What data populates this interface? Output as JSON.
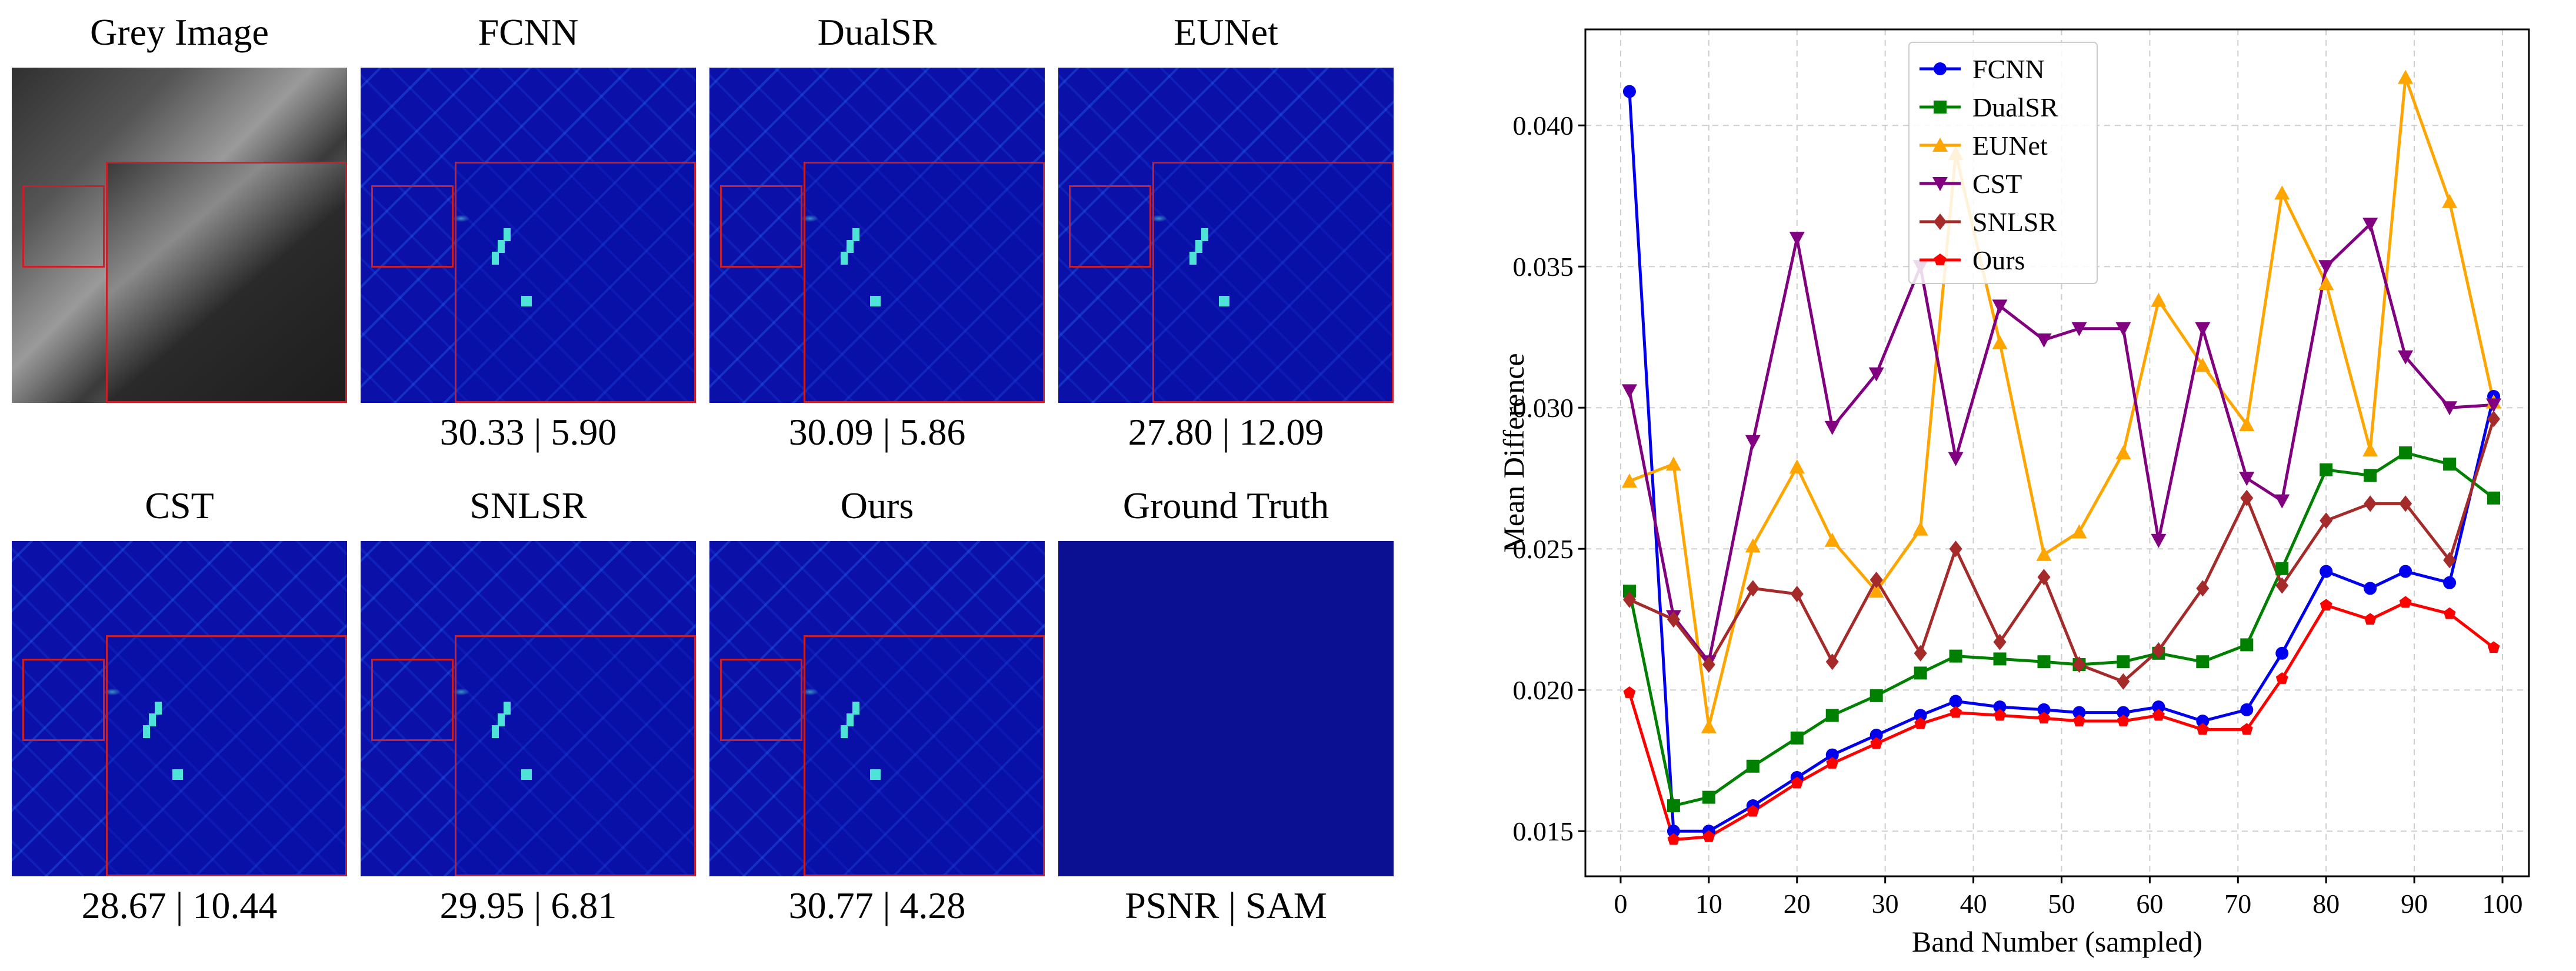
{
  "panels": [
    {
      "title": "Grey Image",
      "score": "",
      "kind": "grey"
    },
    {
      "title": "FCNN",
      "score": "30.33 | 5.90",
      "kind": "heat"
    },
    {
      "title": "DualSR",
      "score": "30.09 | 5.86",
      "kind": "heat"
    },
    {
      "title": "EUNet",
      "score": "27.80 | 12.09",
      "kind": "heat"
    },
    {
      "title": "CST",
      "score": "28.67 | 10.44",
      "kind": "heat"
    },
    {
      "title": "SNLSR",
      "score": "29.95 | 6.81",
      "kind": "heat"
    },
    {
      "title": "Ours",
      "score": "30.77 | 4.28",
      "kind": "heat"
    },
    {
      "title": "Ground Truth",
      "score": "PSNR | SAM",
      "kind": "gt"
    }
  ],
  "chart_data": {
    "type": "line",
    "xlabel": "Band Number (sampled)",
    "ylabel": "Mean Difference",
    "xlim": [
      -4,
      103
    ],
    "ylim": [
      0.0134,
      0.0434
    ],
    "xticks": [
      0,
      10,
      20,
      30,
      40,
      50,
      60,
      70,
      80,
      90,
      100
    ],
    "yticks": [
      0.015,
      0.02,
      0.025,
      0.03,
      0.035,
      0.04
    ],
    "ytick_labels": [
      "0.015",
      "0.020",
      "0.025",
      "0.030",
      "0.035",
      "0.040"
    ],
    "grid": true,
    "legend_position": "top-center",
    "x": [
      1,
      6,
      10,
      15,
      20,
      24,
      29,
      34,
      38,
      43,
      48,
      52,
      57,
      61,
      66,
      71,
      75,
      80,
      85,
      89,
      94,
      99
    ],
    "series": [
      {
        "name": "FCNN",
        "color": "#0000ee",
        "marker": "circle",
        "values": [
          0.0412,
          0.015,
          0.015,
          0.0159,
          0.0169,
          0.0177,
          0.0184,
          0.0191,
          0.0196,
          0.0194,
          0.0193,
          0.0192,
          0.0192,
          0.0194,
          0.0189,
          0.0193,
          0.0213,
          0.0242,
          0.0236,
          0.0242,
          0.0238,
          0.0304
        ]
      },
      {
        "name": "DualSR",
        "color": "#008000",
        "marker": "square",
        "values": [
          0.0235,
          0.0159,
          0.0162,
          0.0173,
          0.0183,
          0.0191,
          0.0198,
          0.0206,
          0.0212,
          0.0211,
          0.021,
          0.0209,
          0.021,
          0.0213,
          0.021,
          0.0216,
          0.0243,
          0.0278,
          0.0276,
          0.0284,
          0.028,
          0.0268
        ]
      },
      {
        "name": "EUNet",
        "color": "#ffa500",
        "marker": "triangle-up",
        "values": [
          0.0274,
          0.028,
          0.0187,
          0.0251,
          0.0279,
          0.0253,
          0.0235,
          0.0257,
          0.039,
          0.0323,
          0.0248,
          0.0256,
          0.0284,
          0.0338,
          0.0315,
          0.0294,
          0.0376,
          0.0344,
          0.0285,
          0.0417,
          0.0373,
          0.0302
        ]
      },
      {
        "name": "CST",
        "color": "#800080",
        "marker": "triangle-down",
        "values": [
          0.0306,
          0.0226,
          0.021,
          0.0288,
          0.036,
          0.0293,
          0.0312,
          0.035,
          0.0282,
          0.0336,
          0.0324,
          0.0328,
          0.0328,
          0.0253,
          0.0328,
          0.0275,
          0.0267,
          0.035,
          0.0365,
          0.0318,
          0.03,
          0.0301
        ]
      },
      {
        "name": "SNLSR",
        "color": "#a52a2a",
        "marker": "diamond",
        "values": [
          0.0232,
          0.0225,
          0.0209,
          0.0236,
          0.0234,
          0.021,
          0.0239,
          0.0213,
          0.025,
          0.0217,
          0.024,
          0.0209,
          0.0203,
          0.0214,
          0.0236,
          0.0268,
          0.0237,
          0.026,
          0.0266,
          0.0266,
          0.0246,
          0.0296
        ]
      },
      {
        "name": "Ours",
        "color": "#ff0000",
        "marker": "pentagon",
        "values": [
          0.0199,
          0.0147,
          0.0148,
          0.0157,
          0.0167,
          0.0174,
          0.0181,
          0.0188,
          0.0192,
          0.0191,
          0.019,
          0.0189,
          0.0189,
          0.0191,
          0.0186,
          0.0186,
          0.0204,
          0.023,
          0.0225,
          0.0231,
          0.0227,
          0.0215
        ]
      }
    ]
  }
}
